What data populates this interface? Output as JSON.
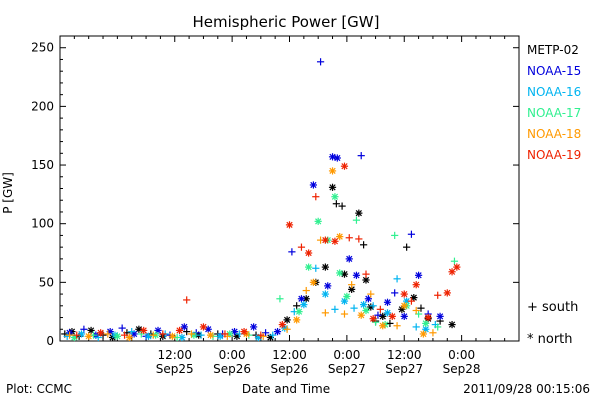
{
  "chart_data": {
    "type": "scatter",
    "title": "Hemispheric Power [GW]",
    "ylabel": "P [GW]",
    "xlabel": "Date and Time",
    "xlim_hours": [
      0,
      96
    ],
    "ylim": [
      0,
      260
    ],
    "y_ticks": [
      0,
      50,
      100,
      150,
      200,
      250
    ],
    "x_ticks": [
      {
        "hour": 24,
        "line1": "12:00",
        "line2": "Sep25"
      },
      {
        "hour": 36,
        "line1": "0:00",
        "line2": "Sep26"
      },
      {
        "hour": 48,
        "line1": "12:00",
        "line2": "Sep26"
      },
      {
        "hour": 60,
        "line1": "0:00",
        "line2": "Sep27"
      },
      {
        "hour": 72,
        "line1": "12:00",
        "line2": "Sep27"
      },
      {
        "hour": 84,
        "line1": "0:00",
        "line2": "Sep28"
      }
    ],
    "x_origin": "2011-09-24 12:00",
    "marker_legend": [
      {
        "symbol": "+",
        "label": "south"
      },
      {
        "symbol": "*",
        "label": "north"
      }
    ],
    "series": [
      {
        "name": "METP-02",
        "color": "#000000",
        "points": [
          [
            1.0,
            6,
            "+"
          ],
          [
            2.5,
            8,
            "*"
          ],
          [
            4.0,
            4,
            "+"
          ],
          [
            6.5,
            9,
            "*"
          ],
          [
            9.0,
            5,
            "+"
          ],
          [
            11.0,
            3,
            "*"
          ],
          [
            14.0,
            7,
            "+"
          ],
          [
            16.5,
            10,
            "*"
          ],
          [
            19.0,
            6,
            "+"
          ],
          [
            21.5,
            4,
            "*"
          ],
          [
            26.5,
            8,
            "+"
          ],
          [
            29.0,
            5,
            "*"
          ],
          [
            33.0,
            6,
            "+"
          ],
          [
            37.0,
            4,
            "*"
          ],
          [
            41.0,
            5,
            "+"
          ],
          [
            44.0,
            3,
            "*"
          ],
          [
            47.5,
            18,
            "*"
          ],
          [
            49.5,
            30,
            "+"
          ],
          [
            51.5,
            36,
            "*"
          ],
          [
            53.5,
            50,
            "*"
          ],
          [
            55.5,
            63,
            "*"
          ],
          [
            57.0,
            131,
            "*"
          ],
          [
            57.8,
            117,
            "+"
          ],
          [
            59.0,
            115,
            "+"
          ],
          [
            59.5,
            57,
            "*"
          ],
          [
            61.0,
            44,
            "*"
          ],
          [
            62.5,
            109,
            "*"
          ],
          [
            63.5,
            82,
            "+"
          ],
          [
            64.0,
            52,
            "*"
          ],
          [
            65.0,
            29,
            "*"
          ],
          [
            66.0,
            17,
            "+"
          ],
          [
            67.5,
            21,
            "*"
          ],
          [
            69.0,
            15,
            "+"
          ],
          [
            71.5,
            27,
            "*"
          ],
          [
            72.5,
            80,
            "+"
          ],
          [
            74.0,
            37,
            "*"
          ],
          [
            75.5,
            28,
            "+"
          ],
          [
            77.0,
            19,
            "*"
          ],
          [
            79.5,
            17,
            "+"
          ],
          [
            82.0,
            14,
            "*"
          ]
        ]
      },
      {
        "name": "NOAA-15",
        "color": "#0000dd",
        "points": [
          [
            2.0,
            7,
            "*"
          ],
          [
            5.0,
            10,
            "+"
          ],
          [
            7.5,
            5,
            "*"
          ],
          [
            10.5,
            8,
            "*"
          ],
          [
            13.0,
            11,
            "+"
          ],
          [
            15.5,
            6,
            "*"
          ],
          [
            18.0,
            4,
            "+"
          ],
          [
            20.5,
            9,
            "*"
          ],
          [
            23.0,
            5,
            "+"
          ],
          [
            26.0,
            12,
            "*"
          ],
          [
            28.5,
            7,
            "+"
          ],
          [
            31.0,
            10,
            "*"
          ],
          [
            34.0,
            6,
            "+"
          ],
          [
            36.5,
            8,
            "*"
          ],
          [
            40.5,
            12,
            "*"
          ],
          [
            43.0,
            7,
            "+"
          ],
          [
            45.5,
            8,
            "*"
          ],
          [
            48.5,
            76,
            "+"
          ],
          [
            50.5,
            36,
            "*"
          ],
          [
            53.0,
            133,
            "*"
          ],
          [
            54.5,
            238,
            "+"
          ],
          [
            56.0,
            47,
            "*"
          ],
          [
            57.0,
            157,
            "*"
          ],
          [
            58.0,
            156,
            "*"
          ],
          [
            60.5,
            70,
            "*"
          ],
          [
            62.0,
            56,
            "*"
          ],
          [
            63.0,
            158,
            "+"
          ],
          [
            64.5,
            36,
            "*"
          ],
          [
            66.5,
            22,
            "+"
          ],
          [
            68.5,
            33,
            "*"
          ],
          [
            70.0,
            41,
            "+"
          ],
          [
            72.0,
            21,
            "*"
          ],
          [
            73.5,
            91,
            "+"
          ],
          [
            75.0,
            56,
            "*"
          ],
          [
            77.0,
            23,
            "+"
          ],
          [
            79.5,
            21,
            "*"
          ]
        ]
      },
      {
        "name": "NOAA-16",
        "color": "#00b4f0",
        "points": [
          [
            1.5,
            4,
            "+"
          ],
          [
            4.5,
            6,
            "*"
          ],
          [
            8.0,
            3,
            "+"
          ],
          [
            11.5,
            5,
            "*"
          ],
          [
            15.0,
            8,
            "+"
          ],
          [
            18.5,
            4,
            "*"
          ],
          [
            22.0,
            6,
            "+"
          ],
          [
            25.5,
            3,
            "*"
          ],
          [
            29.5,
            5,
            "+"
          ],
          [
            33.5,
            4,
            "*"
          ],
          [
            37.5,
            6,
            "+"
          ],
          [
            41.5,
            3,
            "*"
          ],
          [
            44.5,
            5,
            "+"
          ],
          [
            47.0,
            11,
            "*"
          ],
          [
            49.0,
            25,
            "+"
          ],
          [
            51.0,
            31,
            "*"
          ],
          [
            53.5,
            62,
            "+"
          ],
          [
            55.5,
            40,
            "*"
          ],
          [
            57.5,
            27,
            "+"
          ],
          [
            59.5,
            34,
            "*"
          ],
          [
            61.5,
            28,
            "+"
          ],
          [
            63.5,
            31,
            "*"
          ],
          [
            65.5,
            30,
            "+"
          ],
          [
            68.5,
            24,
            "*"
          ],
          [
            70.5,
            53,
            "+"
          ],
          [
            72.5,
            34,
            "*"
          ],
          [
            74.5,
            12,
            "+"
          ],
          [
            76.5,
            10,
            "*"
          ],
          [
            78.5,
            14,
            "+"
          ]
        ]
      },
      {
        "name": "NOAA-17",
        "color": "#30f090",
        "points": [
          [
            3.0,
            3,
            "*"
          ],
          [
            7.0,
            5,
            "+"
          ],
          [
            12.0,
            4,
            "*"
          ],
          [
            17.0,
            6,
            "+"
          ],
          [
            20.0,
            5,
            "*"
          ],
          [
            24.5,
            3,
            "+"
          ],
          [
            28.0,
            5,
            "*"
          ],
          [
            32.0,
            4,
            "+"
          ],
          [
            35.5,
            6,
            "*"
          ],
          [
            39.5,
            5,
            "+"
          ],
          [
            46.0,
            36,
            "+"
          ],
          [
            50.0,
            25,
            "*"
          ],
          [
            52.0,
            63,
            "*"
          ],
          [
            54.0,
            102,
            "*"
          ],
          [
            56.0,
            86,
            "*"
          ],
          [
            57.5,
            123,
            "*"
          ],
          [
            58.5,
            58,
            "*"
          ],
          [
            60.0,
            38,
            "*"
          ],
          [
            62.0,
            103,
            "+"
          ],
          [
            64.0,
            26,
            "*"
          ],
          [
            66.0,
            16,
            "+"
          ],
          [
            68.0,
            14,
            "*"
          ],
          [
            70.0,
            90,
            "+"
          ],
          [
            72.5,
            30,
            "*"
          ],
          [
            75.0,
            23,
            "+"
          ],
          [
            76.5,
            15,
            "*"
          ],
          [
            79.0,
            12,
            "+"
          ],
          [
            82.5,
            68,
            "+"
          ]
        ]
      },
      {
        "name": "NOAA-18",
        "color": "#ff9900",
        "points": [
          [
            2.0,
            5,
            "+"
          ],
          [
            6.0,
            4,
            "*"
          ],
          [
            10.0,
            6,
            "+"
          ],
          [
            14.5,
            3,
            "*"
          ],
          [
            19.5,
            5,
            "+"
          ],
          [
            23.5,
            4,
            "*"
          ],
          [
            27.5,
            6,
            "+"
          ],
          [
            31.5,
            5,
            "*"
          ],
          [
            35.0,
            4,
            "+"
          ],
          [
            39.0,
            6,
            "*"
          ],
          [
            42.5,
            4,
            "+"
          ],
          [
            47.5,
            10,
            "+"
          ],
          [
            49.5,
            18,
            "*"
          ],
          [
            51.5,
            43,
            "+"
          ],
          [
            53.0,
            50,
            "*"
          ],
          [
            54.5,
            86,
            "+"
          ],
          [
            55.5,
            24,
            "+"
          ],
          [
            57.0,
            145,
            "*"
          ],
          [
            58.5,
            89,
            "*"
          ],
          [
            59.5,
            23,
            "+"
          ],
          [
            61.0,
            48,
            "+"
          ],
          [
            63.0,
            22,
            "*"
          ],
          [
            65.0,
            40,
            "+"
          ],
          [
            67.5,
            13,
            "*"
          ],
          [
            70.5,
            13,
            "+"
          ],
          [
            72.0,
            30,
            "*"
          ],
          [
            74.5,
            26,
            "+"
          ],
          [
            76.0,
            6,
            "*"
          ],
          [
            78.0,
            7,
            "+"
          ]
        ]
      },
      {
        "name": "NOAA-19",
        "color": "#ee2200",
        "points": [
          [
            3.5,
            5,
            "+"
          ],
          [
            8.5,
            7,
            "*"
          ],
          [
            13.5,
            5,
            "+"
          ],
          [
            17.5,
            9,
            "*"
          ],
          [
            21.5,
            6,
            "+"
          ],
          [
            25.0,
            9,
            "*"
          ],
          [
            26.5,
            35,
            "+"
          ],
          [
            30.0,
            12,
            "*"
          ],
          [
            34.5,
            6,
            "+"
          ],
          [
            38.5,
            8,
            "*"
          ],
          [
            42.0,
            5,
            "+"
          ],
          [
            46.5,
            14,
            "*"
          ],
          [
            48.0,
            99,
            "*"
          ],
          [
            50.5,
            80,
            "+"
          ],
          [
            52.0,
            75,
            "*"
          ],
          [
            53.5,
            123,
            "+"
          ],
          [
            55.5,
            86,
            "*"
          ],
          [
            57.5,
            85,
            "*"
          ],
          [
            59.5,
            149,
            "*"
          ],
          [
            60.5,
            88,
            "+"
          ],
          [
            62.5,
            87,
            "+"
          ],
          [
            64.0,
            57,
            "+"
          ],
          [
            65.5,
            19,
            "*"
          ],
          [
            67.0,
            27,
            "+"
          ],
          [
            69.5,
            21,
            "*"
          ],
          [
            72.0,
            40,
            "*"
          ],
          [
            73.5,
            34,
            "+"
          ],
          [
            74.5,
            48,
            "*"
          ],
          [
            77.0,
            20,
            "*"
          ],
          [
            79.0,
            39,
            "+"
          ],
          [
            81.0,
            41,
            "*"
          ],
          [
            82.0,
            59,
            "*"
          ],
          [
            83.0,
            63,
            "*"
          ]
        ]
      }
    ]
  },
  "footer": {
    "left": "Plot: CCMC",
    "center": "Date and Time",
    "right": "2011/09/28 00:15:06"
  }
}
